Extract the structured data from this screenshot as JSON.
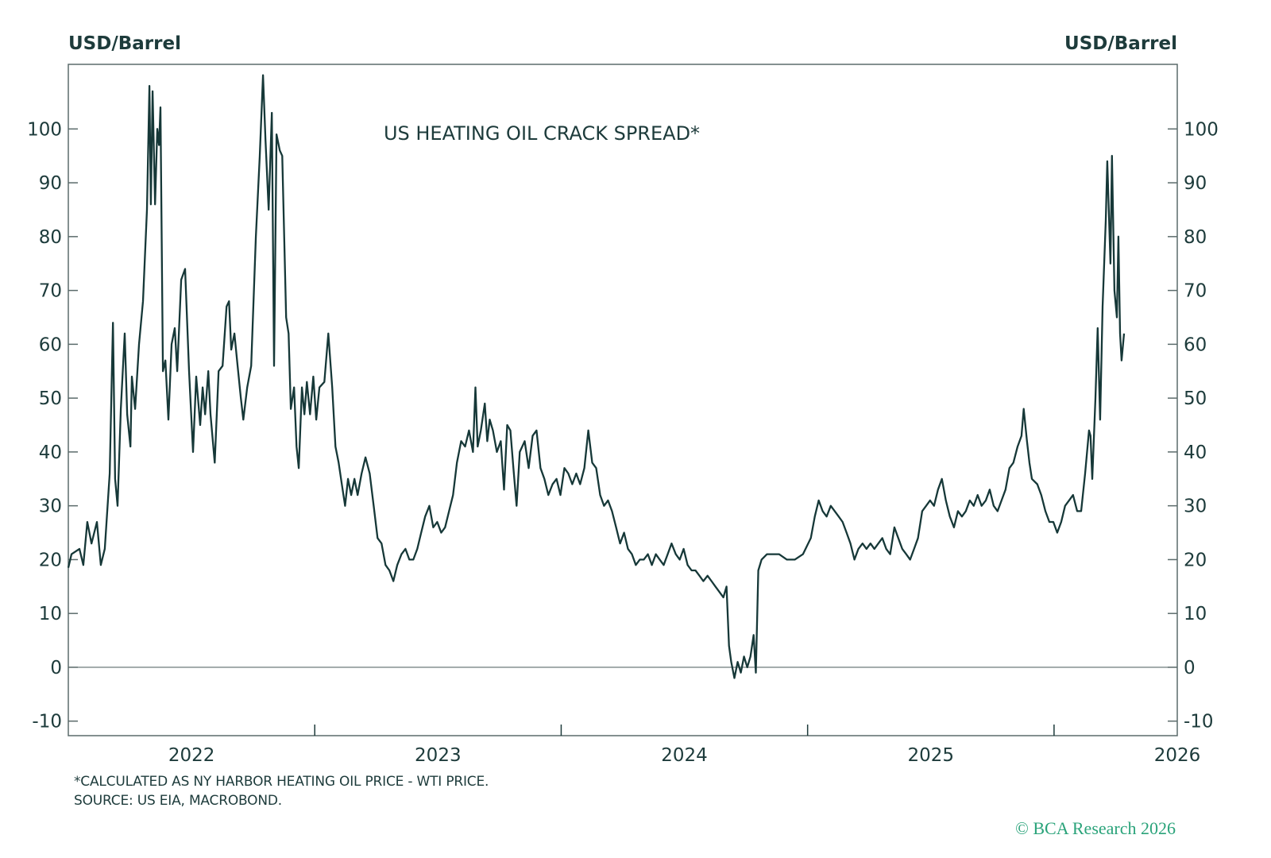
{
  "chart_data": {
    "type": "line",
    "title": "US HEATING OIL CRACK SPREAD*",
    "ylabel_left": "USD/Barrel",
    "ylabel_right": "USD/Barrel",
    "xlabel": "",
    "xlim": [
      2022.0,
      2026.5
    ],
    "ylim": [
      -12.7,
      112
    ],
    "yticks": [
      -10,
      0,
      10,
      20,
      30,
      40,
      50,
      60,
      70,
      80,
      90,
      100
    ],
    "xtick_labels": [
      "2022",
      "2023",
      "2024",
      "2025",
      "2026"
    ],
    "zero_line": true,
    "grid": false,
    "line_color": "#163838",
    "series": [
      {
        "x": [
          2022.0,
          2022.013,
          2022.045,
          2022.061,
          2022.077,
          2022.094,
          2022.116,
          2022.132,
          2022.148,
          2022.168,
          2022.181,
          2022.19,
          2022.2,
          2022.213,
          2022.229,
          2022.239,
          2022.252,
          2022.258,
          2022.271,
          2022.287,
          2022.303,
          2022.319,
          2022.329,
          2022.335,
          2022.342,
          2022.352,
          2022.361,
          2022.368,
          2022.374,
          2022.384,
          2022.394,
          2022.406,
          2022.419,
          2022.432,
          2022.442,
          2022.458,
          2022.474,
          2022.49,
          2022.506,
          2022.519,
          2022.535,
          2022.545,
          2022.555,
          2022.568,
          2022.577,
          2022.594,
          2022.61,
          2022.626,
          2022.642,
          2022.652,
          2022.661,
          2022.674,
          2022.687,
          2022.7,
          2022.71,
          2022.726,
          2022.742,
          2022.761,
          2022.777,
          2022.79,
          2022.8,
          2022.813,
          2022.826,
          2022.835,
          2022.845,
          2022.858,
          2022.868,
          2022.884,
          2022.894,
          2022.903,
          2022.916,
          2022.926,
          2022.935,
          2022.948,
          2022.958,
          2022.968,
          2022.981,
          2022.994,
          2023.006,
          2023.019,
          2023.039,
          2023.055,
          2023.071,
          2023.084,
          2023.097,
          2023.11,
          2023.123,
          2023.135,
          2023.148,
          2023.161,
          2023.174,
          2023.19,
          2023.206,
          2023.223,
          2023.239,
          2023.255,
          2023.271,
          2023.287,
          2023.303,
          2023.319,
          2023.335,
          2023.352,
          2023.368,
          2023.384,
          2023.4,
          2023.416,
          2023.432,
          2023.448,
          2023.465,
          2023.481,
          2023.497,
          2023.513,
          2023.529,
          2023.545,
          2023.561,
          2023.577,
          2023.594,
          2023.61,
          2023.626,
          2023.642,
          2023.652,
          2023.661,
          2023.674,
          2023.69,
          2023.7,
          2023.71,
          2023.723,
          2023.739,
          2023.755,
          2023.768,
          2023.781,
          2023.794,
          2023.806,
          2023.819,
          2023.832,
          2023.852,
          2023.868,
          2023.884,
          2023.9,
          2023.916,
          2023.932,
          2023.948,
          2023.965,
          2023.981,
          2023.997,
          2024.013,
          2024.029,
          2024.045,
          2024.061,
          2024.077,
          2024.094,
          2024.11,
          2024.126,
          2024.142,
          2024.158,
          2024.174,
          2024.19,
          2024.206,
          2024.223,
          2024.239,
          2024.255,
          2024.271,
          2024.287,
          2024.303,
          2024.319,
          2024.335,
          2024.352,
          2024.368,
          2024.384,
          2024.4,
          2024.416,
          2024.432,
          2024.448,
          2024.465,
          2024.481,
          2024.497,
          2024.513,
          2024.529,
          2024.545,
          2024.561,
          2024.577,
          2024.594,
          2024.61,
          2024.626,
          2024.642,
          2024.658,
          2024.671,
          2024.681,
          2024.69,
          2024.703,
          2024.716,
          2024.729,
          2024.742,
          2024.755,
          2024.768,
          2024.781,
          2024.79,
          2024.8,
          2024.813,
          2024.835,
          2024.852,
          2024.884,
          2024.916,
          2024.948,
          2024.981,
          2025.013,
          2025.029,
          2025.045,
          2025.061,
          2025.077,
          2025.094,
          2025.11,
          2025.126,
          2025.142,
          2025.158,
          2025.174,
          2025.19,
          2025.206,
          2025.223,
          2025.239,
          2025.255,
          2025.271,
          2025.287,
          2025.303,
          2025.319,
          2025.335,
          2025.352,
          2025.368,
          2025.384,
          2025.4,
          2025.416,
          2025.432,
          2025.448,
          2025.465,
          2025.481,
          2025.497,
          2025.513,
          2025.529,
          2025.545,
          2025.561,
          2025.577,
          2025.594,
          2025.61,
          2025.626,
          2025.642,
          2025.658,
          2025.674,
          2025.69,
          2025.706,
          2025.723,
          2025.739,
          2025.755,
          2025.771,
          2025.787,
          2025.803,
          2025.819,
          2025.835,
          2025.852,
          2025.868,
          2025.877,
          2025.89,
          2025.9,
          2025.91,
          2025.932,
          2025.948,
          2025.965,
          2025.981,
          2025.997,
          2026.013,
          2026.029,
          2026.045,
          2026.061,
          2026.077,
          2026.094,
          2026.11,
          2026.126,
          2026.142,
          2026.148,
          2026.155,
          2026.168,
          2026.177,
          2026.187,
          2026.197,
          2026.21,
          2026.216,
          2026.229,
          2026.235,
          2026.245,
          2026.255,
          2026.261,
          2026.268,
          2026.274,
          2026.284
        ],
        "y": [
          18.5,
          21,
          22,
          19,
          27,
          23,
          27,
          19,
          22,
          36,
          64,
          35,
          30,
          48,
          62,
          47,
          41,
          54,
          48,
          60,
          68,
          85,
          108,
          86,
          107,
          86,
          100,
          97,
          104,
          55,
          57,
          46,
          60,
          63,
          55,
          72,
          74,
          55,
          40,
          54,
          45,
          52,
          47,
          55,
          47,
          38,
          55,
          56,
          67,
          68,
          59,
          62,
          56,
          50,
          46,
          52,
          56,
          80,
          95,
          110,
          98,
          85,
          103,
          56,
          99,
          96,
          95,
          65,
          62,
          48,
          52,
          41,
          37,
          52,
          47,
          53,
          47,
          54,
          46,
          52,
          53,
          62,
          52,
          41,
          38,
          34,
          30,
          35,
          32,
          35,
          32,
          36,
          39,
          36,
          30,
          24,
          23,
          19,
          18,
          16,
          19,
          21,
          22,
          20,
          20,
          22,
          25,
          28,
          30,
          26,
          27,
          25,
          26,
          29,
          32,
          38,
          42,
          41,
          44,
          40,
          52,
          41,
          44,
          49,
          42,
          46,
          44,
          40,
          42,
          33,
          45,
          44,
          37,
          30,
          40,
          42,
          37,
          43,
          44,
          37,
          35,
          32,
          34,
          35,
          32,
          37,
          36,
          34,
          36,
          34,
          37,
          44,
          38,
          37,
          32,
          30,
          31,
          29,
          26,
          23,
          25,
          22,
          21,
          19,
          20,
          20,
          21,
          19,
          21,
          20,
          19,
          21,
          23,
          21,
          20,
          22,
          19,
          18,
          18,
          17,
          16,
          17,
          16,
          15,
          14,
          13,
          15,
          4,
          1,
          -2,
          1,
          -1,
          2,
          0,
          2,
          6,
          -1,
          18,
          20,
          21,
          21,
          21,
          20,
          20,
          21,
          24,
          28,
          31,
          29,
          28,
          30,
          29,
          28,
          27,
          25,
          23,
          20,
          22,
          23,
          22,
          23,
          22,
          23,
          24,
          22,
          21,
          26,
          24,
          22,
          21,
          20,
          22,
          24,
          29,
          30,
          31,
          30,
          33,
          35,
          31,
          28,
          26,
          29,
          28,
          29,
          31,
          30,
          32,
          30,
          31,
          33,
          30,
          29,
          31,
          33,
          37,
          38,
          41,
          43,
          48,
          42,
          38,
          35,
          34,
          32,
          29,
          27,
          27,
          25,
          27,
          30,
          31,
          32,
          29,
          29,
          36,
          44,
          43,
          35,
          50,
          63,
          46,
          67,
          83,
          94,
          75,
          95,
          70,
          65,
          80,
          62,
          57,
          62
        ]
      }
    ]
  },
  "footnotes": {
    "note": "*CALCULATED AS NY HARBOR HEATING OIL PRICE - WTI PRICE.",
    "source": "SOURCE: US EIA, MACROBOND."
  },
  "copyright": "© BCA Research 2026",
  "colors": {
    "text": "#1d3b3b",
    "frame": "#5b6b6b",
    "copyright": "#2aa37a"
  }
}
